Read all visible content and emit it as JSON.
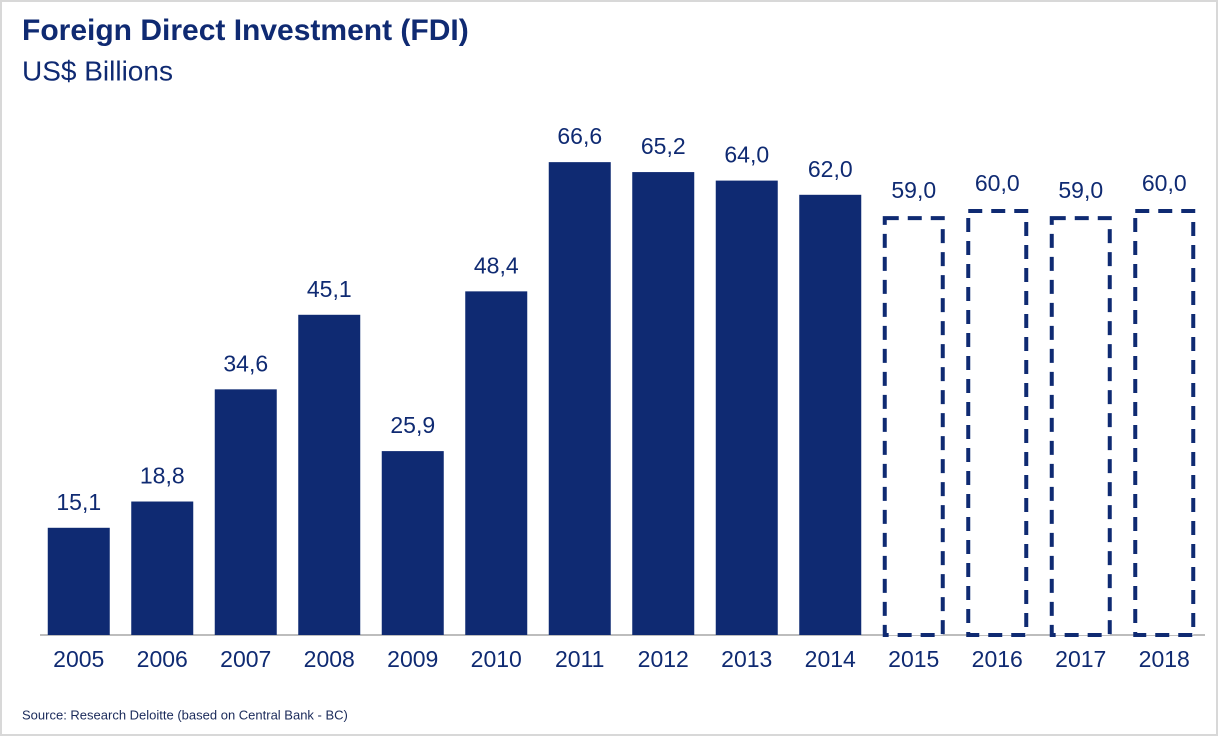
{
  "chart_data": {
    "type": "bar",
    "title": "Foreign Direct Investment (FDI)",
    "subtitle": "US$ Billions",
    "source": "Source: Research Deloitte (based on Central Bank - BC)",
    "categories": [
      "2005",
      "2006",
      "2007",
      "2008",
      "2009",
      "2010",
      "2011",
      "2012",
      "2013",
      "2014",
      "2015",
      "2016",
      "2017",
      "2018"
    ],
    "values": [
      15.1,
      18.8,
      34.6,
      45.1,
      25.9,
      48.4,
      66.6,
      65.2,
      64.0,
      62.0,
      59.0,
      60.0,
      59.0,
      60.0
    ],
    "value_labels": [
      "15,1",
      "18,8",
      "34,6",
      "45,1",
      "25,9",
      "48,4",
      "66,6",
      "65,2",
      "64,0",
      "62,0",
      "59,0",
      "60,0",
      "59,0",
      "60,0"
    ],
    "bar_styles": [
      "solid",
      "solid",
      "solid",
      "solid",
      "solid",
      "solid",
      "solid",
      "solid",
      "solid",
      "solid",
      "dashed",
      "dashed",
      "dashed",
      "dashed"
    ],
    "color": "#0f2a72",
    "ylim": [
      0,
      70
    ]
  }
}
